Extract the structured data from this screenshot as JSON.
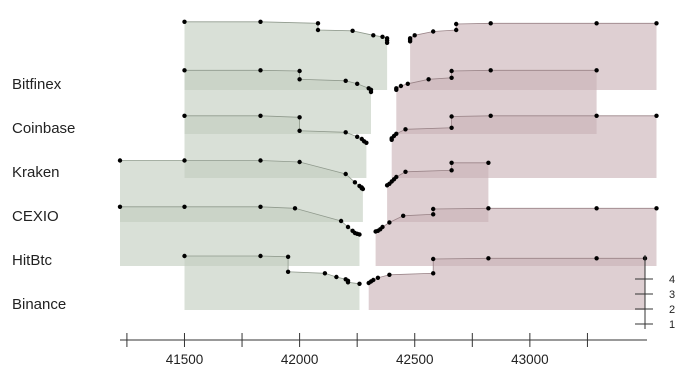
{
  "chart_data": {
    "type": "area",
    "title": "",
    "xlabel": "",
    "ylabel": "",
    "exchanges": [
      "Bitfinex",
      "Coinbase",
      "Kraken",
      "CEXIO",
      "HitBtc",
      "Binance"
    ],
    "x_ticks": [
      41500,
      42000,
      42500,
      43000
    ],
    "x_minor_ticks": [
      41250,
      41750,
      42250,
      42750,
      43250
    ],
    "xlim": [
      41200,
      43550
    ],
    "y_ticks": [
      1,
      2,
      3,
      4
    ],
    "ylim": [
      0,
      4.6
    ],
    "colors": {
      "bid": "#c2cdbf",
      "ask": "#c9b2b6",
      "bid_edge": "#909a8d",
      "ask_edge": "#9a8488",
      "point": "#000000",
      "axis": "#333333"
    },
    "bid_series": [
      {
        "exchange": "Bitfinex",
        "points": [
          [
            41500,
            4.55
          ],
          [
            41830,
            4.55
          ],
          [
            42080,
            4.45
          ],
          [
            42080,
            4.0
          ],
          [
            42230,
            3.95
          ],
          [
            42320,
            3.65
          ],
          [
            42360,
            3.55
          ],
          [
            42380,
            3.45
          ],
          [
            42380,
            3.3
          ],
          [
            42380,
            3.15
          ]
        ]
      },
      {
        "exchange": "Coinbase",
        "points": [
          [
            41500,
            4.25
          ],
          [
            41830,
            4.25
          ],
          [
            42000,
            4.2
          ],
          [
            42000,
            3.65
          ],
          [
            42200,
            3.55
          ],
          [
            42250,
            3.35
          ],
          [
            42300,
            3.05
          ],
          [
            42310,
            2.95
          ],
          [
            42310,
            2.8
          ]
        ]
      },
      {
        "exchange": "Kraken",
        "points": [
          [
            41500,
            4.15
          ],
          [
            41830,
            4.15
          ],
          [
            42000,
            4.05
          ],
          [
            42000,
            3.15
          ],
          [
            42200,
            3.05
          ],
          [
            42250,
            2.75
          ],
          [
            42270,
            2.6
          ],
          [
            42280,
            2.45
          ],
          [
            42290,
            2.35
          ]
        ]
      },
      {
        "exchange": "CEXIO",
        "points": [
          [
            41220,
            4.1
          ],
          [
            41500,
            4.1
          ],
          [
            41830,
            4.1
          ],
          [
            42000,
            4.0
          ],
          [
            42200,
            3.2
          ],
          [
            42240,
            2.65
          ],
          [
            42260,
            2.4
          ],
          [
            42270,
            2.3
          ],
          [
            42270,
            2.25
          ],
          [
            42275,
            2.2
          ]
        ]
      },
      {
        "exchange": "HitBtc",
        "points": [
          [
            41220,
            3.95
          ],
          [
            41500,
            3.95
          ],
          [
            41830,
            3.95
          ],
          [
            41980,
            3.85
          ],
          [
            42180,
            3.0
          ],
          [
            42210,
            2.6
          ],
          [
            42230,
            2.35
          ],
          [
            42240,
            2.2
          ],
          [
            42250,
            2.15
          ],
          [
            42260,
            2.1
          ]
        ]
      },
      {
        "exchange": "Binance",
        "points": [
          [
            41500,
            3.6
          ],
          [
            41830,
            3.6
          ],
          [
            41950,
            3.55
          ],
          [
            41950,
            2.55
          ],
          [
            42110,
            2.45
          ],
          [
            42160,
            2.2
          ],
          [
            42200,
            2.05
          ],
          [
            42210,
            1.95
          ],
          [
            42210,
            1.85
          ],
          [
            42260,
            1.75
          ]
        ]
      }
    ],
    "ask_series": [
      {
        "exchange": "Bitfinex",
        "points": [
          [
            43550,
            4.45
          ],
          [
            43290,
            4.45
          ],
          [
            42830,
            4.45
          ],
          [
            42680,
            4.4
          ],
          [
            42680,
            4.0
          ],
          [
            42580,
            3.9
          ],
          [
            42500,
            3.65
          ],
          [
            42480,
            3.45
          ],
          [
            42480,
            3.35
          ],
          [
            42480,
            3.25
          ]
        ]
      },
      {
        "exchange": "Coinbase",
        "points": [
          [
            43290,
            4.25
          ],
          [
            42830,
            4.25
          ],
          [
            42660,
            4.2
          ],
          [
            42660,
            3.75
          ],
          [
            42560,
            3.65
          ],
          [
            42470,
            3.35
          ],
          [
            42440,
            3.2
          ],
          [
            42420,
            3.05
          ],
          [
            42420,
            2.95
          ]
        ]
      },
      {
        "exchange": "Kraken",
        "points": [
          [
            43550,
            4.15
          ],
          [
            43290,
            4.15
          ],
          [
            42830,
            4.15
          ],
          [
            42660,
            4.1
          ],
          [
            42660,
            3.35
          ],
          [
            42460,
            3.25
          ],
          [
            42420,
            2.95
          ],
          [
            42410,
            2.8
          ],
          [
            42400,
            2.65
          ],
          [
            42400,
            2.55
          ]
        ]
      },
      {
        "exchange": "CEXIO",
        "points": [
          [
            42820,
            3.95
          ],
          [
            42660,
            3.95
          ],
          [
            42660,
            3.45
          ],
          [
            42460,
            3.35
          ],
          [
            42420,
            3.0
          ],
          [
            42410,
            2.85
          ],
          [
            42400,
            2.7
          ],
          [
            42390,
            2.55
          ],
          [
            42380,
            2.45
          ]
        ]
      },
      {
        "exchange": "HitBtc",
        "points": [
          [
            43550,
            3.85
          ],
          [
            43290,
            3.85
          ],
          [
            42820,
            3.85
          ],
          [
            42580,
            3.8
          ],
          [
            42580,
            3.45
          ],
          [
            42450,
            3.35
          ],
          [
            42390,
            2.9
          ],
          [
            42360,
            2.6
          ],
          [
            42350,
            2.45
          ],
          [
            42340,
            2.35
          ],
          [
            42330,
            2.3
          ]
        ]
      },
      {
        "exchange": "Binance",
        "points": [
          [
            43500,
            3.45
          ],
          [
            43290,
            3.45
          ],
          [
            42820,
            3.45
          ],
          [
            42580,
            3.4
          ],
          [
            42580,
            2.45
          ],
          [
            42390,
            2.35
          ],
          [
            42340,
            2.15
          ],
          [
            42320,
            2.0
          ],
          [
            42310,
            1.9
          ],
          [
            42300,
            1.8
          ]
        ]
      }
    ]
  }
}
